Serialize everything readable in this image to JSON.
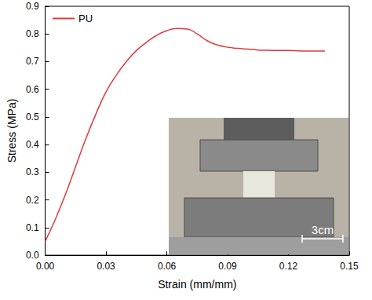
{
  "chart_data": {
    "type": "line",
    "x_label": "Strain (mm/mm)",
    "y_label": "Stress (MPa)",
    "legend": "upper left",
    "grid": false,
    "xlim": [
      0,
      0.15
    ],
    "xticks": [
      {
        "value": 0,
        "label": "0.00"
      },
      0.03,
      0.06,
      0.09,
      0.12,
      0.15
    ],
    "ylim": [
      0,
      0.9
    ],
    "yticks": [
      {
        "value": 0,
        "label": "0.0"
      },
      0.1,
      0.2,
      0.3,
      0.4,
      0.5,
      0.6,
      0.7,
      0.8,
      0.9
    ],
    "x": [
      0,
      0.005,
      0.01,
      0.015,
      0.02,
      0.025,
      0.03,
      0.035,
      0.04,
      0.045,
      0.05,
      0.055,
      0.06,
      0.065,
      0.07,
      0.075,
      0.08,
      0.085,
      0.09,
      0.095,
      0.1,
      0.105,
      0.11,
      0.115,
      0.12,
      0.125,
      0.13,
      0.135,
      0.138
    ],
    "series": [
      {
        "name": "PU",
        "color": "#e0393b",
        "values": [
          0.05,
          0.13,
          0.22,
          0.32,
          0.42,
          0.51,
          0.59,
          0.65,
          0.7,
          0.74,
          0.77,
          0.795,
          0.812,
          0.82,
          0.818,
          0.8,
          0.775,
          0.76,
          0.752,
          0.748,
          0.745,
          0.742,
          0.741,
          0.74,
          0.74,
          0.739,
          0.738,
          0.738,
          0.738
        ]
      }
    ],
    "annotations": [
      {
        "text": "3cm"
      }
    ]
  }
}
